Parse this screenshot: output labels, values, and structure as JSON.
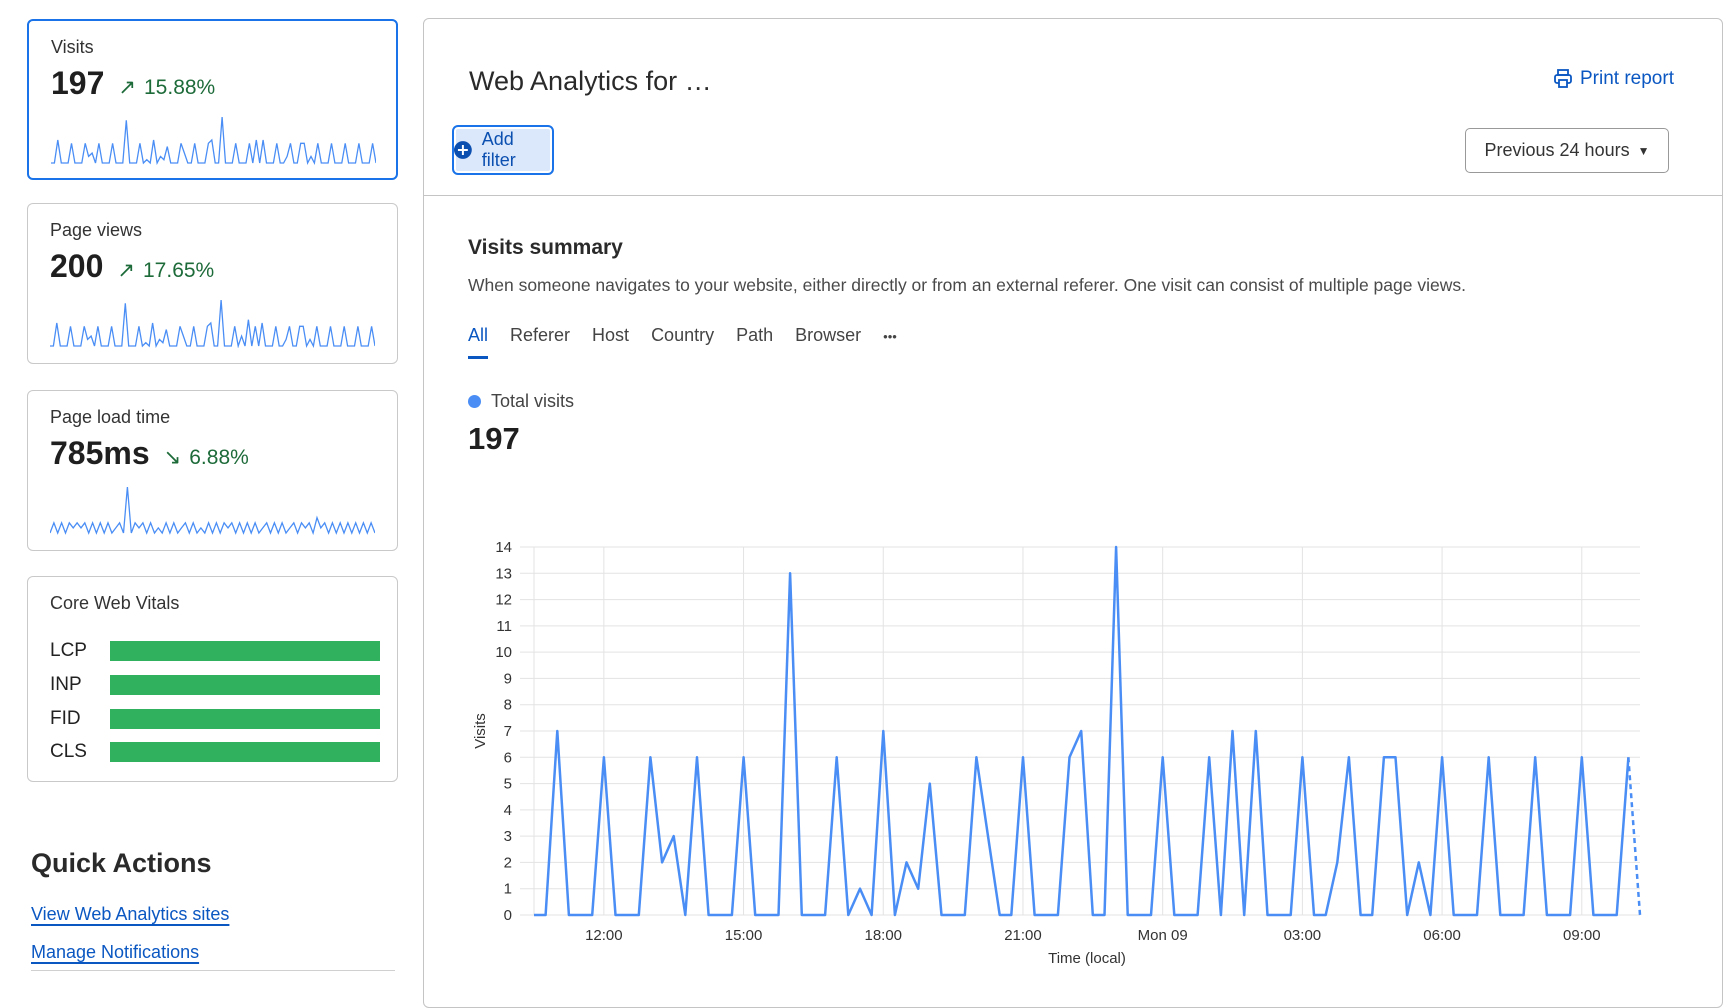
{
  "sidebar": {
    "cards": [
      {
        "label": "Visits",
        "value": "197",
        "trend": "15.88%",
        "trend_direction": "up",
        "spark": [
          0,
          0,
          7,
          0,
          0,
          0,
          6,
          0,
          0,
          0,
          6,
          2,
          3,
          0,
          6,
          0,
          0,
          0,
          6,
          0,
          0,
          0,
          13,
          0,
          0,
          0,
          6,
          0,
          1,
          0,
          7,
          0,
          2,
          1,
          5,
          0,
          0,
          0,
          6,
          3,
          0,
          0,
          6,
          0,
          0,
          0,
          6,
          7,
          0,
          0,
          14,
          0,
          0,
          0,
          6,
          0,
          0,
          0,
          6,
          0,
          7,
          0,
          7,
          0,
          0,
          0,
          6,
          0,
          0,
          2,
          6,
          0,
          0,
          6,
          6,
          0,
          2,
          0,
          6,
          0,
          0,
          0,
          6,
          0,
          0,
          0,
          6,
          0,
          0,
          0,
          6,
          0,
          0,
          0,
          6,
          0
        ]
      },
      {
        "label": "Page views",
        "value": "200",
        "trend": "17.65%",
        "trend_direction": "up",
        "spark": [
          0,
          0,
          7,
          0,
          0,
          0,
          6,
          0,
          0,
          0,
          6,
          2,
          3,
          0,
          6,
          0,
          0,
          0,
          6,
          0,
          0,
          0,
          13,
          0,
          0,
          0,
          6,
          0,
          1,
          0,
          7,
          0,
          2,
          1,
          5,
          0,
          0,
          0,
          6,
          3,
          0,
          0,
          6,
          0,
          0,
          0,
          6,
          7,
          0,
          0,
          14,
          0,
          0,
          0,
          6,
          0,
          3,
          0,
          8,
          0,
          6,
          0,
          7,
          0,
          0,
          0,
          6,
          0,
          0,
          2,
          6,
          0,
          0,
          6,
          6,
          0,
          2,
          0,
          6,
          0,
          0,
          0,
          6,
          0,
          0,
          0,
          6,
          0,
          0,
          0,
          6,
          0,
          0,
          0,
          6,
          0
        ]
      },
      {
        "label": "Page load time",
        "value": "785ms",
        "trend": "6.88%",
        "trend_direction": "down",
        "spark": [
          0,
          2,
          0,
          2,
          0,
          2,
          1,
          2,
          1,
          2,
          0,
          2,
          0,
          2,
          0,
          2,
          0,
          1,
          2,
          0,
          9,
          0,
          2,
          1,
          2,
          0,
          2,
          0,
          1,
          0,
          2,
          0,
          2,
          0,
          1,
          2,
          0,
          2,
          0,
          1,
          0,
          2,
          0,
          2,
          0,
          2,
          1,
          2,
          0,
          2,
          0,
          2,
          0,
          2,
          0,
          1,
          2,
          0,
          2,
          0,
          2,
          0,
          1,
          2,
          0,
          2,
          1,
          2,
          0,
          3,
          1,
          2,
          0,
          2,
          0,
          2,
          0,
          2,
          0,
          2,
          0,
          2,
          0,
          2,
          0
        ]
      }
    ],
    "cwv": {
      "title": "Core Web Vitals",
      "good_color": "#2fb15d",
      "items": [
        {
          "name": "LCP",
          "good_fraction": 1.0
        },
        {
          "name": "INP",
          "good_fraction": 1.0
        },
        {
          "name": "FID",
          "good_fraction": 1.0
        },
        {
          "name": "CLS",
          "good_fraction": 1.0
        }
      ]
    },
    "quick_actions": {
      "title": "Quick Actions",
      "links": [
        "View Web Analytics sites",
        "Manage Notifications"
      ]
    }
  },
  "main": {
    "title": "Web Analytics for …",
    "print_label": "Print report",
    "add_filter_label": "Add filter",
    "range_label": "Previous 24 hours",
    "summary_title": "Visits summary",
    "summary_desc": "When someone navigates to your website, either directly or from an external referer. One visit can consist of multiple page views.",
    "tabs": [
      "All",
      "Referer",
      "Host",
      "Country",
      "Path",
      "Browser",
      "•••"
    ],
    "active_tab": "All",
    "legend_label": "Total visits",
    "total": "197"
  },
  "colors": {
    "accent": "#0b57c2",
    "series": "#4a8ef5",
    "trend_good": "#1e6b3a",
    "active_border": "#1a73e8"
  },
  "chart_data": {
    "type": "line",
    "xlabel": "Time (local)",
    "ylabel": "Visits",
    "ylim": [
      0,
      14
    ],
    "yticks": [
      0,
      1,
      2,
      3,
      4,
      5,
      6,
      7,
      8,
      9,
      10,
      11,
      12,
      13,
      14
    ],
    "grid": true,
    "xticks": [
      {
        "x": "12:00",
        "label": "12:00"
      },
      {
        "x": "15:00",
        "label": "15:00"
      },
      {
        "x": "18:00",
        "label": "18:00"
      },
      {
        "x": "21:00",
        "label": "21:00"
      },
      {
        "x": "00:00",
        "label": "Mon 09"
      },
      {
        "x": "03:00",
        "label": "03:00"
      },
      {
        "x": "06:00",
        "label": "06:00"
      },
      {
        "x": "09:00",
        "label": "09:00"
      }
    ],
    "series": [
      {
        "name": "Total visits",
        "color": "#4a8ef5",
        "x": [
          "10:30",
          "10:45",
          "11:00",
          "11:15",
          "11:30",
          "11:45",
          "12:00",
          "12:15",
          "12:30",
          "12:45",
          "13:00",
          "13:15",
          "13:30",
          "13:45",
          "14:00",
          "14:15",
          "14:30",
          "14:45",
          "15:00",
          "15:15",
          "15:30",
          "15:45",
          "16:00",
          "16:15",
          "16:30",
          "16:45",
          "17:00",
          "17:15",
          "17:30",
          "17:45",
          "18:00",
          "18:15",
          "18:30",
          "18:45",
          "19:00",
          "19:15",
          "19:30",
          "19:45",
          "20:00",
          "20:15",
          "20:30",
          "20:45",
          "21:00",
          "21:15",
          "21:30",
          "21:45",
          "22:00",
          "22:15",
          "22:30",
          "22:45",
          "23:00",
          "23:15",
          "23:30",
          "23:45",
          "00:00",
          "00:15",
          "00:30",
          "00:45",
          "01:00",
          "01:15",
          "01:30",
          "01:45",
          "02:00",
          "02:15",
          "02:30",
          "02:45",
          "03:00",
          "03:15",
          "03:30",
          "03:45",
          "04:00",
          "04:15",
          "04:30",
          "04:45",
          "05:00",
          "05:15",
          "05:30",
          "05:45",
          "06:00",
          "06:15",
          "06:30",
          "06:45",
          "07:00",
          "07:15",
          "07:30",
          "07:45",
          "08:00",
          "08:15",
          "08:30",
          "08:45",
          "09:00",
          "09:15",
          "09:30",
          "09:45",
          "10:00",
          "10:15"
        ],
        "y": [
          0,
          0,
          7,
          0,
          0,
          0,
          6,
          0,
          0,
          0,
          6,
          2,
          3,
          0,
          6,
          0,
          0,
          0,
          6,
          0,
          0,
          0,
          13,
          0,
          0,
          0,
          6,
          0,
          1,
          0,
          7,
          0,
          2,
          1,
          5,
          0,
          0,
          0,
          6,
          3,
          0,
          0,
          6,
          0,
          0,
          0,
          6,
          7,
          0,
          0,
          14,
          0,
          0,
          0,
          6,
          0,
          0,
          0,
          6,
          0,
          7,
          0,
          7,
          0,
          0,
          0,
          6,
          0,
          0,
          2,
          6,
          0,
          0,
          6,
          6,
          0,
          2,
          0,
          6,
          0,
          0,
          0,
          6,
          0,
          0,
          0,
          6,
          0,
          0,
          0,
          6,
          0,
          0,
          0,
          6,
          0
        ],
        "incomplete_last_point": true
      }
    ]
  }
}
